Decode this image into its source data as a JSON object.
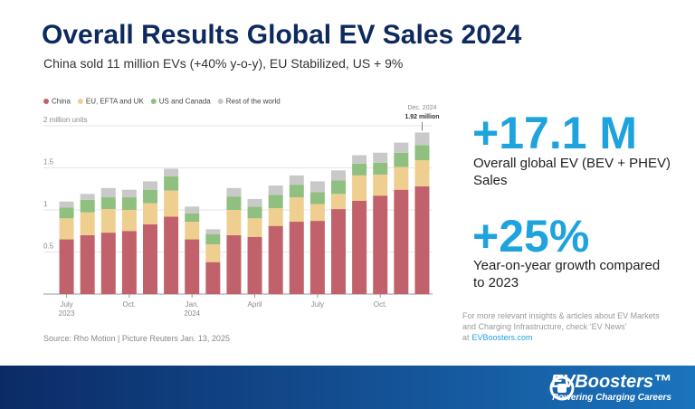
{
  "header": {
    "title": "Overall Results Global EV Sales 2024",
    "subtitle": "China sold 11 million EVs (+40% y-o-y), EU Stabilized, US + 9%"
  },
  "stats": [
    {
      "value": "+17.1 M",
      "text": "Overall global EV (BEV + PHEV) Sales"
    },
    {
      "value": "+25%",
      "text": "Year-on-year growth compared to 2023"
    }
  ],
  "source": "Source: Rho Motion | Picture Reuters Jan. 13, 2025",
  "footer": {
    "note": "For more relevant insights & articles about EV Markets and Charging Infrastructure, check ‘EV News’ at",
    "link": "EVBoosters.com",
    "logo": "EVBoosters™",
    "tagline": "Powering Charging Careers"
  },
  "chart_data": {
    "type": "stacked_bar",
    "categories": [
      "July",
      null,
      null,
      "Oct.",
      null,
      null,
      "Jan.",
      null,
      null,
      "April",
      null,
      null,
      "July",
      null,
      null,
      "Oct.",
      null,
      null
    ],
    "x_sublabels": [
      "2023",
      null,
      null,
      null,
      null,
      null,
      "2024",
      null,
      null,
      null,
      null,
      null,
      null,
      null,
      null,
      null,
      null,
      null
    ],
    "series": [
      {
        "name": "China",
        "color": "#c1616b",
        "values": [
          0.65,
          0.7,
          0.73,
          0.75,
          0.83,
          0.92,
          0.65,
          0.38,
          0.7,
          0.68,
          0.81,
          0.86,
          0.87,
          1.01,
          1.11,
          1.17,
          1.24,
          1.28
        ]
      },
      {
        "name": "EU, EFTA and UK",
        "color": "#efcf8f",
        "values": [
          0.25,
          0.27,
          0.28,
          0.25,
          0.25,
          0.31,
          0.21,
          0.21,
          0.3,
          0.22,
          0.21,
          0.29,
          0.2,
          0.18,
          0.3,
          0.25,
          0.27,
          0.31
        ]
      },
      {
        "name": "US and Canada",
        "color": "#90c080",
        "values": [
          0.13,
          0.15,
          0.14,
          0.15,
          0.16,
          0.17,
          0.1,
          0.12,
          0.16,
          0.14,
          0.16,
          0.15,
          0.14,
          0.16,
          0.14,
          0.14,
          0.17,
          0.18
        ]
      },
      {
        "name": "Rest of the world",
        "color": "#c9c9c9",
        "values": [
          0.07,
          0.07,
          0.11,
          0.09,
          0.1,
          0.09,
          0.08,
          0.06,
          0.1,
          0.09,
          0.11,
          0.11,
          0.13,
          0.12,
          0.1,
          0.12,
          0.12,
          0.15
        ]
      }
    ],
    "ylim": [
      0,
      2.1
    ],
    "yticks": [
      0.5,
      1,
      1.5,
      {
        "value": 2,
        "label": "2 million units"
      }
    ],
    "grid": true,
    "annotation": {
      "date": "Dec. 2024",
      "text": "1.92 million"
    }
  }
}
